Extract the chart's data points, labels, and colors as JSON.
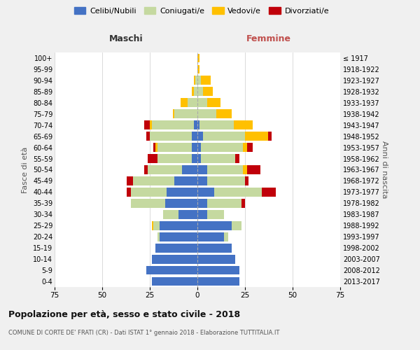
{
  "age_groups": [
    "0-4",
    "5-9",
    "10-14",
    "15-19",
    "20-24",
    "25-29",
    "30-34",
    "35-39",
    "40-44",
    "45-49",
    "50-54",
    "55-59",
    "60-64",
    "65-69",
    "70-74",
    "75-79",
    "80-84",
    "85-89",
    "90-94",
    "95-99",
    "100+"
  ],
  "birth_years": [
    "2013-2017",
    "2008-2012",
    "2003-2007",
    "1998-2002",
    "1993-1997",
    "1988-1992",
    "1983-1987",
    "1978-1982",
    "1973-1977",
    "1968-1972",
    "1963-1967",
    "1958-1962",
    "1953-1957",
    "1948-1952",
    "1943-1947",
    "1938-1942",
    "1933-1937",
    "1928-1932",
    "1923-1927",
    "1918-1922",
    "≤ 1917"
  ],
  "males": {
    "celibi": [
      24,
      27,
      24,
      22,
      20,
      20,
      10,
      17,
      16,
      12,
      8,
      3,
      3,
      3,
      2,
      0,
      0,
      0,
      0,
      0,
      0
    ],
    "coniugati": [
      0,
      0,
      0,
      0,
      1,
      3,
      8,
      18,
      19,
      22,
      18,
      18,
      18,
      22,
      22,
      12,
      5,
      2,
      1,
      0,
      0
    ],
    "vedovi": [
      0,
      0,
      0,
      0,
      0,
      1,
      0,
      0,
      0,
      0,
      0,
      0,
      1,
      0,
      1,
      1,
      4,
      1,
      1,
      0,
      0
    ],
    "divorziati": [
      0,
      0,
      0,
      0,
      0,
      0,
      0,
      0,
      2,
      3,
      2,
      5,
      1,
      2,
      3,
      0,
      0,
      0,
      0,
      0,
      0
    ]
  },
  "females": {
    "nubili": [
      22,
      22,
      20,
      18,
      14,
      18,
      5,
      5,
      9,
      5,
      5,
      2,
      2,
      3,
      1,
      0,
      0,
      0,
      0,
      0,
      0
    ],
    "coniugate": [
      0,
      0,
      0,
      0,
      2,
      5,
      9,
      18,
      25,
      20,
      19,
      18,
      22,
      22,
      18,
      10,
      5,
      3,
      2,
      0,
      0
    ],
    "vedove": [
      0,
      0,
      0,
      0,
      0,
      0,
      0,
      0,
      0,
      0,
      2,
      0,
      2,
      12,
      10,
      8,
      7,
      5,
      5,
      1,
      1
    ],
    "divorziate": [
      0,
      0,
      0,
      0,
      0,
      0,
      0,
      2,
      7,
      2,
      7,
      2,
      3,
      2,
      0,
      0,
      0,
      0,
      0,
      0,
      0
    ]
  },
  "colors": {
    "celibi": "#4472c4",
    "coniugati": "#c5d9a0",
    "vedovi": "#ffc000",
    "divorziati": "#c0000a"
  },
  "title": "Popolazione per età, sesso e stato civile - 2018",
  "subtitle": "COMUNE DI CORTE DE' FRATI (CR) - Dati ISTAT 1° gennaio 2018 - Elaborazione TUTTITALIA.IT",
  "ylabel_left": "Fasce di età",
  "ylabel_right": "Anni di nascita",
  "xlabel_left": "Maschi",
  "xlabel_right": "Femmine",
  "xlim": 75,
  "background_color": "#f0f0f0",
  "plot_bg": "#ffffff"
}
